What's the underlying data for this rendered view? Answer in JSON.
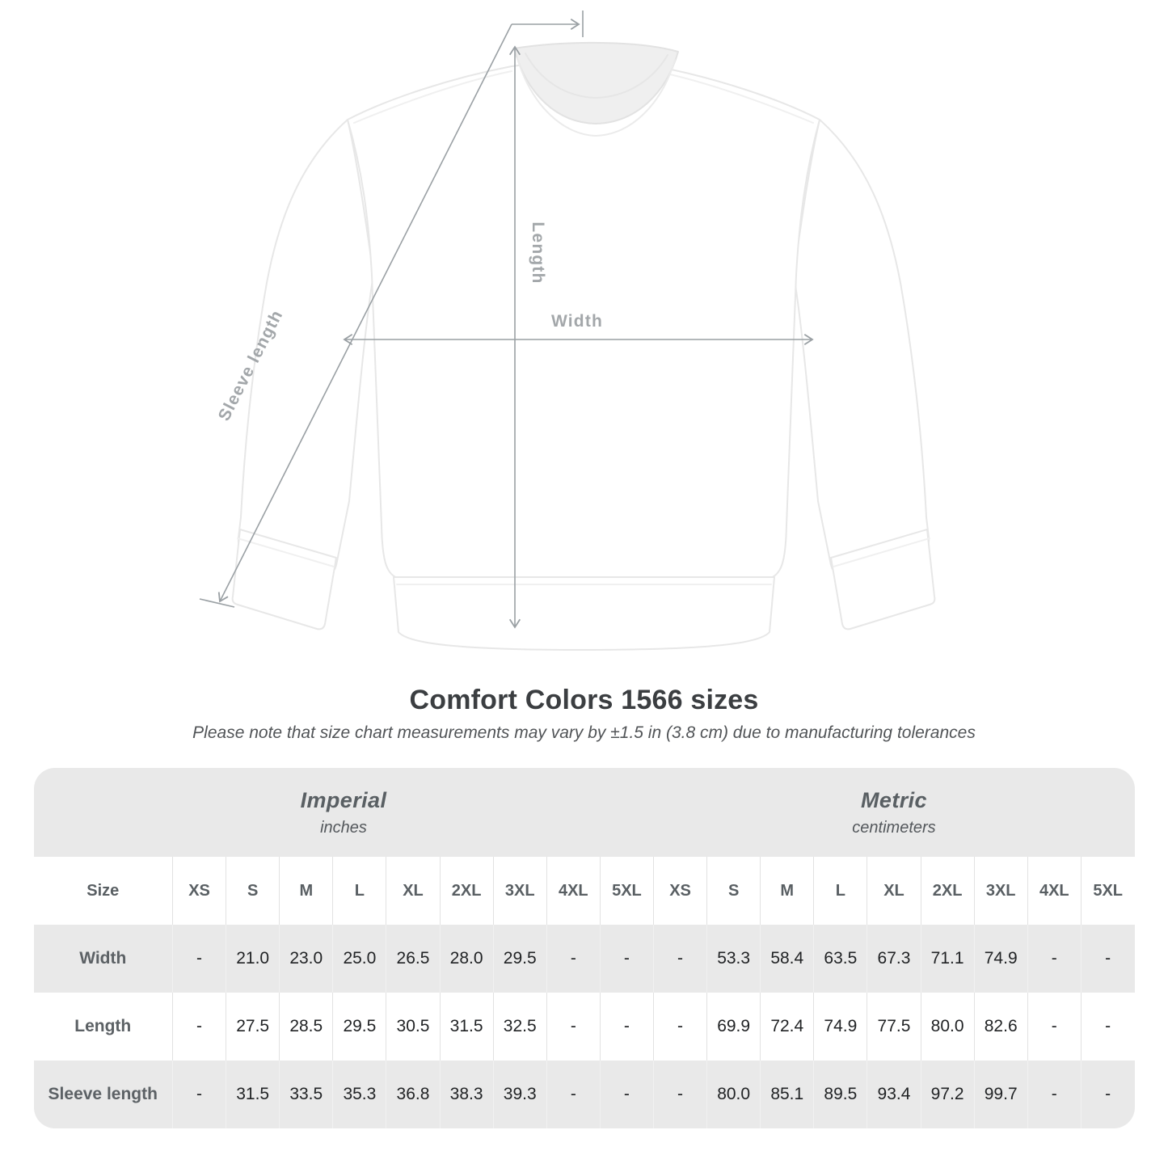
{
  "figure": {
    "illustration": "white-crewneck-sweatshirt",
    "labels": {
      "sleeve": "Sleeve length",
      "length": "Length",
      "width": "Width"
    }
  },
  "header": {
    "title": "Comfort Colors 1566 sizes",
    "note": "Please note that size chart measurements may vary by ±1.5 in (3.8 cm) due to manufacturing tolerances"
  },
  "table": {
    "groups": [
      {
        "label": "Imperial",
        "sublabel": "inches"
      },
      {
        "label": "Metric",
        "sublabel": "centimeters"
      }
    ],
    "size_header": "Size",
    "sizes": [
      "XS",
      "S",
      "M",
      "L",
      "XL",
      "2XL",
      "3XL",
      "4XL",
      "5XL"
    ],
    "rows": [
      {
        "label": "Width",
        "imperial": [
          "-",
          "21.0",
          "23.0",
          "25.0",
          "26.5",
          "28.0",
          "29.5",
          "-",
          "-"
        ],
        "metric": [
          "-",
          "53.3",
          "58.4",
          "63.5",
          "67.3",
          "71.1",
          "74.9",
          "-",
          "-"
        ]
      },
      {
        "label": "Length",
        "imperial": [
          "-",
          "27.5",
          "28.5",
          "29.5",
          "30.5",
          "31.5",
          "32.5",
          "-",
          "-"
        ],
        "metric": [
          "-",
          "69.9",
          "72.4",
          "74.9",
          "77.5",
          "80.0",
          "82.6",
          "-",
          "-"
        ]
      },
      {
        "label": "Sleeve length",
        "imperial": [
          "-",
          "31.5",
          "33.5",
          "35.3",
          "36.8",
          "38.3",
          "39.3",
          "-",
          "-"
        ],
        "metric": [
          "-",
          "80.0",
          "85.1",
          "89.5",
          "93.4",
          "97.2",
          "99.7",
          "-",
          "-"
        ]
      }
    ]
  },
  "colors": {
    "table_gray": "#e9e9e9",
    "dimension_line": "#9aa0a4",
    "dimension_label": "#a3a7aa",
    "value_text": "#212325",
    "heading_text": "#3b3e41"
  }
}
